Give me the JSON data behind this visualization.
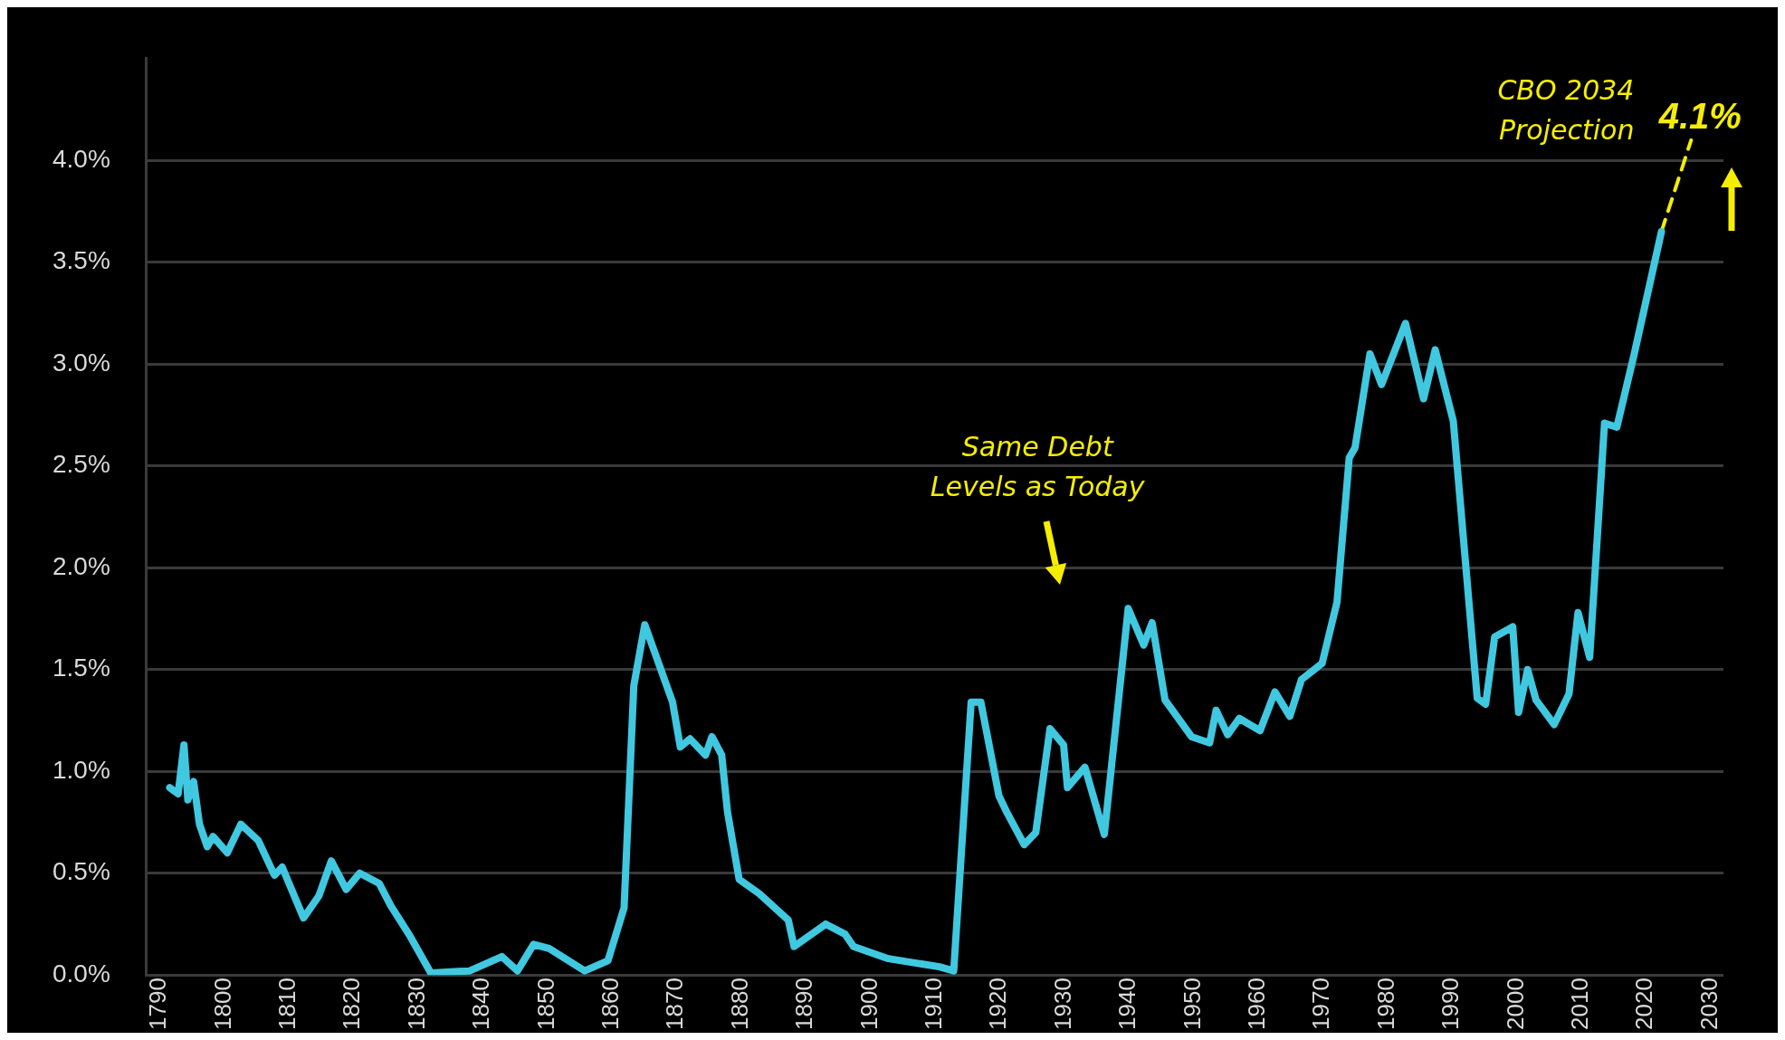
{
  "chart_data": {
    "type": "line",
    "x": [
      1791.6,
      1792.9,
      1793.8,
      1794.4,
      1795.3,
      1796.2,
      1797.4,
      1798.3,
      1800.5,
      1802.6,
      1805.3,
      1807.8,
      1809,
      1812.3,
      1814.7,
      1816.6,
      1818.9,
      1821,
      1824,
      1825.8,
      1828.8,
      1832,
      1838,
      1843,
      1845.4,
      1847.9,
      1850.3,
      1855.8,
      1859.4,
      1861.9,
      1863.4,
      1865.1,
      1869.4,
      1870.6,
      1872.1,
      1874.5,
      1875.5,
      1877,
      1877.9,
      1879.7,
      1882.8,
      1887.3,
      1888.2,
      1893.1,
      1896.1,
      1897.4,
      1902.8,
      1910.7,
      1912.9,
      1915.6,
      1917.1,
      1919.9,
      1921.1,
      1923.8,
      1925.6,
      1927.8,
      1929.9,
      1930.5,
      1933.2,
      1936.2,
      1939.9,
      1942.3,
      1943.6,
      1945.6,
      1949.7,
      1952.5,
      1953.5,
      1955.3,
      1957.1,
      1960.3,
      1962.6,
      1964.9,
      1966.7,
      1969.9,
      1972.2,
      1974.1,
      1975,
      1977.3,
      1979.1,
      1982.8,
      1985.6,
      1987.4,
      1990.2,
      1993.9,
      1995.2,
      1996.6,
      1999.4,
      2000.3,
      2001.7,
      2003,
      2005.8,
      2008.1,
      2009.5,
      2011.3,
      2013.6,
      2015.5,
      2018.2,
      2022.4
    ],
    "series": [
      {
        "color": "#40c8e0",
        "values": [
          0.92,
          0.89,
          1.13,
          0.86,
          0.95,
          0.74,
          0.63,
          0.68,
          0.6,
          0.74,
          0.66,
          0.49,
          0.53,
          0.28,
          0.39,
          0.56,
          0.42,
          0.5,
          0.45,
          0.34,
          0.19,
          0.01,
          0.02,
          0.09,
          0.02,
          0.15,
          0.13,
          0.02,
          0.07,
          0.33,
          1.42,
          1.72,
          1.34,
          1.12,
          1.16,
          1.08,
          1.17,
          1.08,
          0.8,
          0.47,
          0.4,
          0.27,
          0.14,
          0.25,
          0.2,
          0.14,
          0.08,
          0.04,
          0.02,
          1.34,
          1.34,
          0.88,
          0.8,
          0.64,
          0.7,
          1.21,
          1.13,
          0.92,
          1.02,
          0.69,
          1.8,
          1.62,
          1.73,
          1.35,
          1.17,
          1.14,
          1.3,
          1.18,
          1.26,
          1.2,
          1.39,
          1.27,
          1.45,
          1.53,
          1.83,
          2.54,
          2.59,
          3.05,
          2.9,
          3.2,
          2.83,
          3.07,
          2.72,
          1.36,
          1.33,
          1.66,
          1.71,
          1.29,
          1.5,
          1.35,
          1.23,
          1.38,
          1.78,
          1.56,
          2.71,
          2.69,
          3.05,
          3.65
        ]
      },
      {
        "type": "line",
        "color": "#f5ee00",
        "line_style": "dashed",
        "x": [
          2022.4,
          2027
        ],
        "values": [
          3.65,
          4.1
        ],
        "value_labels": [
          null,
          "4.1%"
        ]
      }
    ],
    "xlim": [
      1788,
      2032
    ],
    "xticks": [
      1790,
      1800,
      1810,
      1820,
      1830,
      1840,
      1850,
      1860,
      1870,
      1880,
      1890,
      1900,
      1910,
      1920,
      1930,
      1940,
      1950,
      1960,
      1970,
      1980,
      1990,
      2000,
      2010,
      2020,
      2030
    ],
    "ylim": [
      0,
      4.5
    ],
    "yticks": [
      {
        "value": 0,
        "label": "0.0%"
      },
      {
        "value": 0.5,
        "label": "0.5%"
      },
      {
        "value": 1,
        "label": "1.0%"
      },
      {
        "value": 1.5,
        "label": "1.5%"
      },
      {
        "value": 2,
        "label": "2.0%"
      },
      {
        "value": 2.5,
        "label": "2.5%"
      },
      {
        "value": 3,
        "label": "3.0%"
      },
      {
        "value": 3.5,
        "label": "3.5%"
      },
      {
        "value": 4,
        "label": "4.0%"
      }
    ],
    "grid": "y",
    "legend": false,
    "marker": "none",
    "annotations": [
      "CBO 2034 Projection",
      "Same Debt Levels as Today"
    ]
  }
}
